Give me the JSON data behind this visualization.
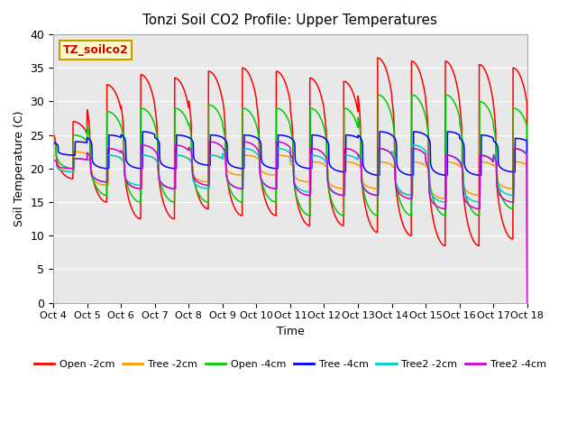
{
  "title": "Tonzi Soil CO2 Profile: Upper Temperatures",
  "ylabel": "Soil Temperature (C)",
  "xlabel": "Time",
  "annotation": "TZ_soilco2",
  "ylim": [
    0,
    40
  ],
  "yticks": [
    0,
    5,
    10,
    15,
    20,
    25,
    30,
    35,
    40
  ],
  "xtick_labels": [
    "Oct 4",
    "Oct 5",
    "Oct 6",
    "Oct 7",
    "Oct 8",
    "Oct 9",
    "Oct 10",
    "Oct 11",
    "Oct 12",
    "Oct 13",
    "Oct 14",
    "Oct 15",
    "Oct 16",
    "Oct 17",
    "Oct 18"
  ],
  "series_colors": [
    "#ff0000",
    "#ff9900",
    "#00cc00",
    "#0000ff",
    "#00cccc",
    "#cc00cc"
  ],
  "series_labels": [
    "Open -2cm",
    "Tree -2cm",
    "Open -4cm",
    "Tree -4cm",
    "Tree2 -2cm",
    "Tree2 -4cm"
  ],
  "plot_bg_color": "#e8e8e8",
  "n_days": 14,
  "points_per_day": 144,
  "phase_peak": 0.58,
  "open2_peaks": [
    27,
    32.5,
    34,
    33.5,
    34.5,
    35,
    34.5,
    33.5,
    33,
    36.5,
    36,
    36,
    35.5,
    35
  ],
  "open2_troughs": [
    18.5,
    15,
    12.5,
    12.5,
    14,
    13,
    13,
    11.5,
    11.5,
    10.5,
    10,
    8.5,
    8.5,
    9.5
  ],
  "tree2_peaks": [
    22.5,
    22,
    22,
    22,
    22,
    22,
    22,
    21,
    21,
    21,
    21,
    21,
    21,
    21
  ],
  "tree2_troughs": [
    19.5,
    17.5,
    17,
    17,
    18,
    19,
    19,
    18,
    17,
    17,
    16,
    15.5,
    16,
    17
  ],
  "open4_peaks": [
    25,
    28.5,
    29,
    29,
    29.5,
    29,
    29,
    29,
    29,
    31,
    31,
    31,
    30,
    29
  ],
  "open4_troughs": [
    20,
    16,
    15,
    15,
    15,
    15,
    15,
    13,
    13,
    13,
    13,
    13,
    13,
    14
  ],
  "tree4_peaks": [
    24,
    25,
    25.5,
    25,
    25,
    25,
    25,
    25,
    25,
    25.5,
    25.5,
    25.5,
    25,
    24.5
  ],
  "tree4_troughs": [
    22,
    20,
    20,
    20,
    20.5,
    20,
    20,
    20,
    19.5,
    19,
    19,
    19,
    19,
    19.5
  ],
  "tree2_2_peaks": [
    21.5,
    22,
    22,
    22,
    22,
    23,
    23,
    22,
    22,
    23,
    23.5,
    22,
    22,
    23
  ],
  "tree2_2_troughs": [
    19.5,
    18,
    17.5,
    17,
    17,
    17,
    17,
    16.5,
    16,
    16,
    16,
    15,
    15,
    16
  ],
  "tree2_4_peaks": [
    21.5,
    23,
    23.5,
    23.5,
    24,
    24,
    24,
    23,
    23,
    23,
    23,
    22,
    22,
    23
  ],
  "tree2_4_troughs": [
    20,
    18,
    17,
    17,
    17.5,
    17,
    17,
    16,
    16,
    16,
    15.5,
    14,
    14,
    15
  ]
}
